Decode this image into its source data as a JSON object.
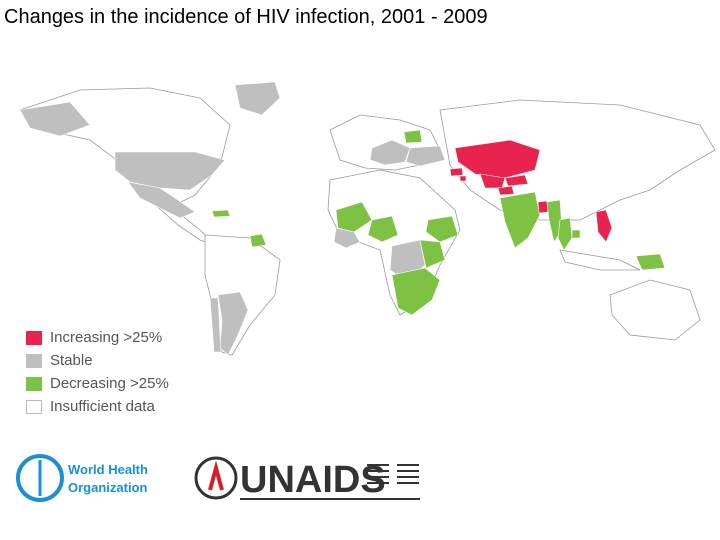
{
  "title": "Changes in the incidence of HIV infection, 2001 - 2009",
  "colors": {
    "increasing": "#e8244e",
    "stable": "#bfbfbf",
    "decreasing": "#7dc242",
    "insufficient": "#ffffff",
    "border": "#9a9a9a",
    "who_blue": "#1a8fd6",
    "unaids_red": "#d31f2b",
    "unaids_dark": "#333333"
  },
  "legend": [
    {
      "key": "increasing",
      "label": "Increasing >25%"
    },
    {
      "key": "stable",
      "label": "Stable"
    },
    {
      "key": "decreasing",
      "label": "Decreasing >25%"
    },
    {
      "key": "insufficient",
      "label": "Insufficient data"
    }
  ],
  "regions": [
    {
      "name": "russia",
      "category": "insufficient"
    },
    {
      "name": "kazakhstan",
      "category": "increasing"
    },
    {
      "name": "uzbekistan",
      "category": "increasing"
    },
    {
      "name": "kyrgyzstan",
      "category": "increasing"
    },
    {
      "name": "tajikistan",
      "category": "increasing"
    },
    {
      "name": "georgia",
      "category": "increasing"
    },
    {
      "name": "armenia",
      "category": "increasing"
    },
    {
      "name": "bangladesh",
      "category": "increasing"
    },
    {
      "name": "philippines",
      "category": "increasing"
    },
    {
      "name": "usa",
      "category": "stable"
    },
    {
      "name": "greenland",
      "category": "stable"
    },
    {
      "name": "mexico",
      "category": "stable"
    },
    {
      "name": "argentina",
      "category": "stable"
    },
    {
      "name": "chile",
      "category": "stable"
    },
    {
      "name": "eastern-europe",
      "category": "stable"
    },
    {
      "name": "ukraine",
      "category": "stable"
    },
    {
      "name": "west-africa",
      "category": "stable"
    },
    {
      "name": "drc",
      "category": "stable"
    },
    {
      "name": "india",
      "category": "decreasing"
    },
    {
      "name": "myanmar",
      "category": "decreasing"
    },
    {
      "name": "thailand",
      "category": "decreasing"
    },
    {
      "name": "cambodia",
      "category": "decreasing"
    },
    {
      "name": "papua-new-guinea",
      "category": "decreasing"
    },
    {
      "name": "ethiopia",
      "category": "decreasing"
    },
    {
      "name": "southern-africa",
      "category": "decreasing"
    },
    {
      "name": "east-africa",
      "category": "decreasing"
    },
    {
      "name": "nigeria",
      "category": "decreasing"
    },
    {
      "name": "mali-burkina",
      "category": "decreasing"
    },
    {
      "name": "latvia-estonia",
      "category": "decreasing"
    },
    {
      "name": "caribbean",
      "category": "decreasing"
    },
    {
      "name": "suriname",
      "category": "decreasing"
    }
  ],
  "logos": {
    "who": {
      "line1": "World Health",
      "line2": "Organization"
    },
    "unaids": {
      "name": "UNAIDS"
    }
  }
}
